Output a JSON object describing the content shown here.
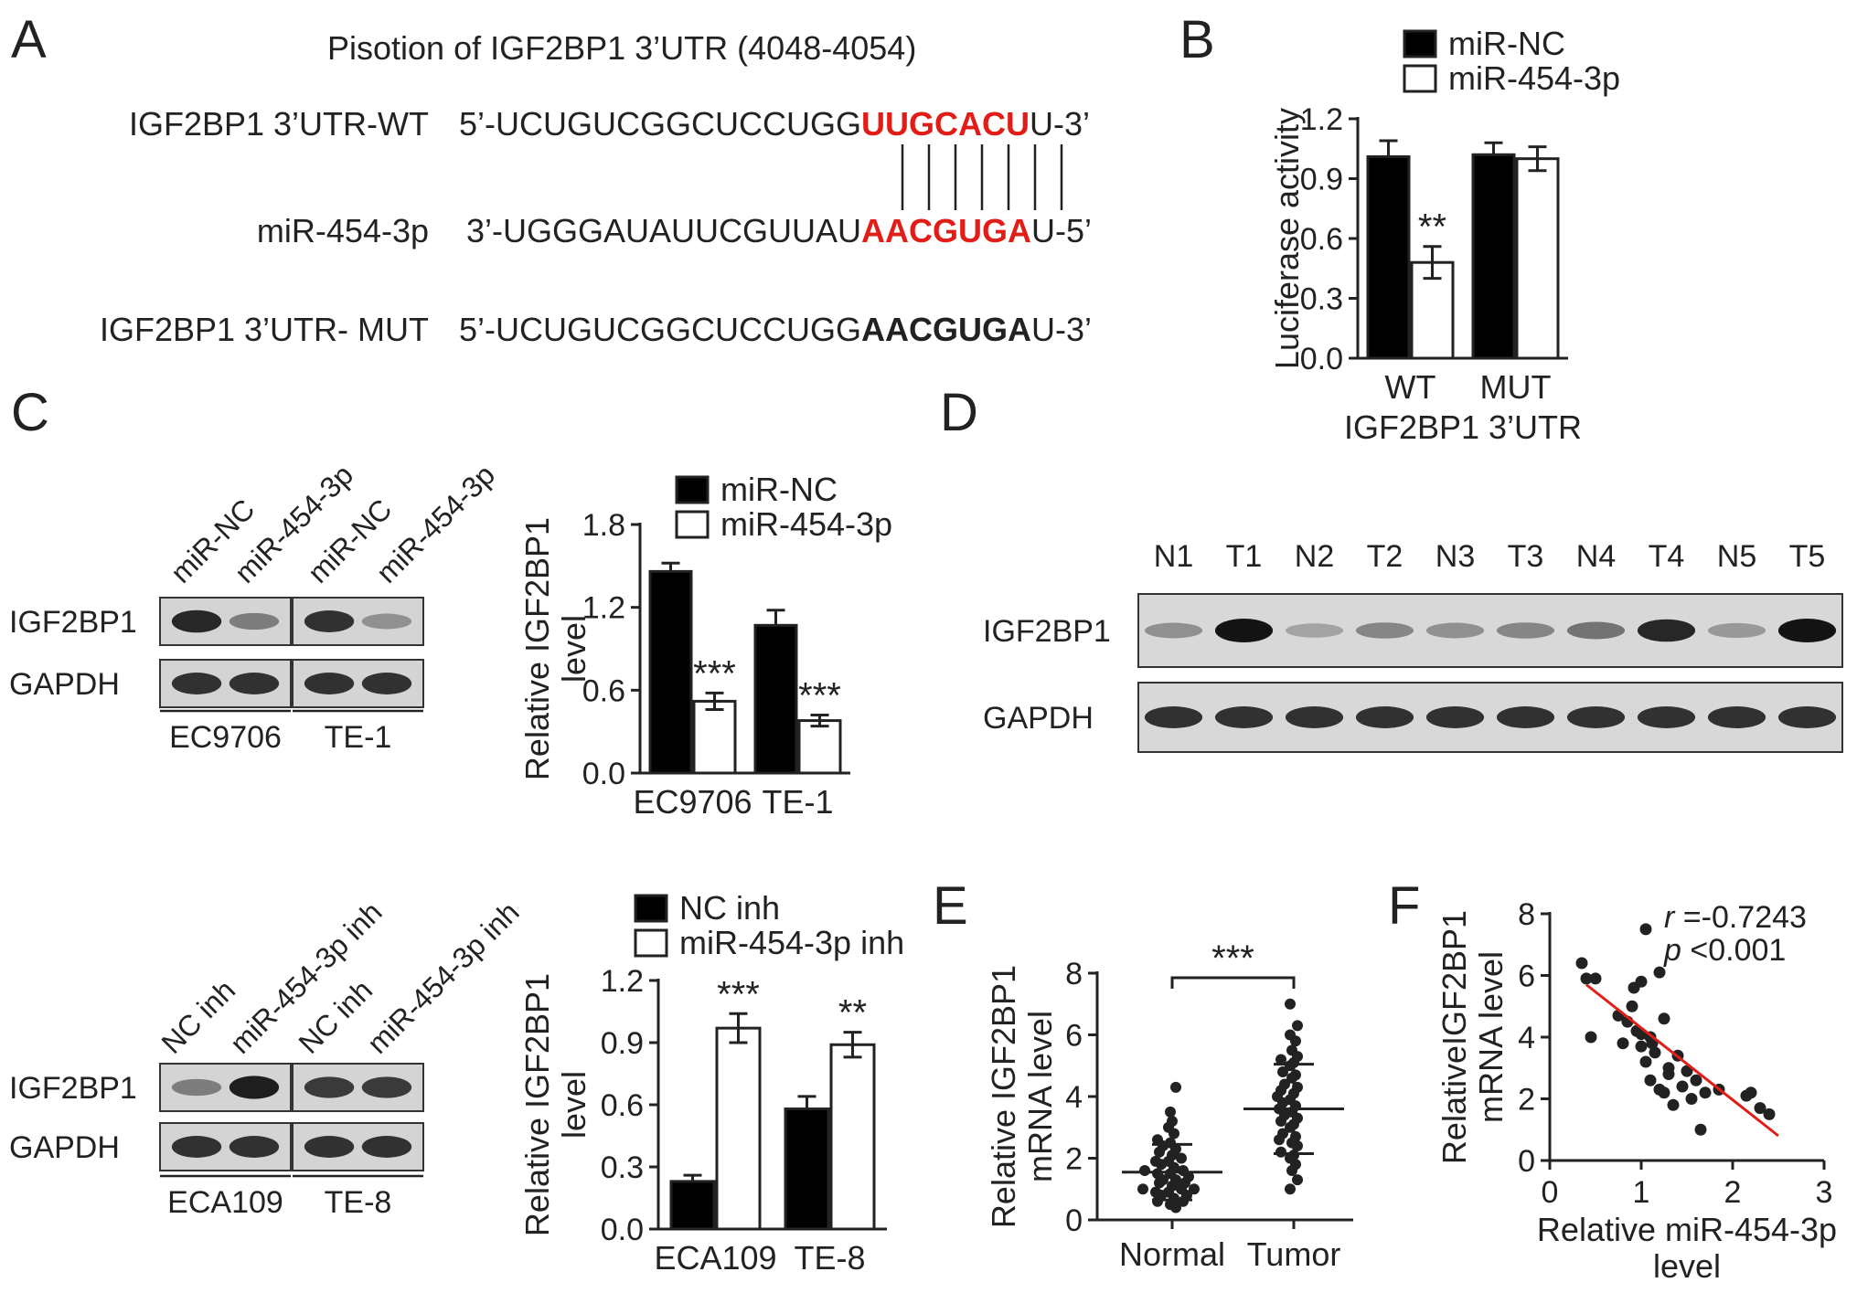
{
  "panels": {
    "A": "A",
    "B": "B",
    "C": "C",
    "D": "D",
    "E": "E",
    "F": "F"
  },
  "panel_a": {
    "title": "Pisotion of IGF2BP1 3’UTR (4048-4054)",
    "rows": [
      {
        "label": "IGF2BP1 3’UTR-WT",
        "prefix": "5’-UCUGUCGGCUCCUGG",
        "site": "UUGCACU",
        "suffix": "U-3’",
        "style": "red"
      },
      {
        "label": "miR-454-3p",
        "prefix": "3’-UGGGAUAUUCGUUAU",
        "site": "AACGUGA",
        "suffix": "U-5’",
        "style": "red"
      },
      {
        "label": "IGF2BP1 3’UTR- MUT",
        "prefix": "5’-UCUGUCGGCUCCUGG",
        "site": "AACGUGA",
        "suffix": "U-3’",
        "style": "bold"
      }
    ]
  },
  "blot_c_top": {
    "lanes": [
      "miR-NC",
      "miR-454-3p",
      "miR-NC",
      "miR-454-3p"
    ],
    "rows": [
      "IGF2BP1",
      "GAPDH"
    ],
    "cells": [
      "EC9706",
      "TE-1"
    ]
  },
  "blot_c_bottom": {
    "lanes": [
      "NC inh",
      "miR-454-3p inh",
      "NC inh",
      "miR-454-3p inh"
    ],
    "rows": [
      "IGF2BP1",
      "GAPDH"
    ],
    "cells": [
      "ECA109",
      "TE-8"
    ]
  },
  "blot_d": {
    "lanes": [
      "N1",
      "T1",
      "N2",
      "T2",
      "N3",
      "T3",
      "N4",
      "T4",
      "N5",
      "T5"
    ],
    "rows": [
      "IGF2BP1",
      "GAPDH"
    ],
    "igf2bp1_intensity": [
      0.35,
      1.0,
      0.25,
      0.4,
      0.35,
      0.4,
      0.5,
      0.9,
      0.3,
      1.0
    ]
  },
  "chart_data": [
    {
      "panel": "B",
      "type": "bar",
      "categories": [
        "WT",
        "MUT"
      ],
      "xlabel": "IGF2BP1 3’UTR",
      "ylabel": "Luciferase activity",
      "ylim": [
        0,
        1.2
      ],
      "yticks": [
        "0.0",
        "0.3",
        "0.6",
        "0.9",
        "1.2"
      ],
      "series": [
        {
          "name": "miR-NC",
          "color": "#000000",
          "values": [
            1.01,
            1.02
          ],
          "errors": [
            0.08,
            0.06
          ]
        },
        {
          "name": "miR-454-3p",
          "color": "#ffffff",
          "values": [
            0.48,
            1.0
          ],
          "errors": [
            0.08,
            0.06
          ]
        }
      ],
      "annotations": [
        {
          "category": 0,
          "series": 1,
          "text": "**"
        }
      ]
    },
    {
      "panel": "C-top",
      "type": "bar",
      "categories": [
        "EC9706",
        "TE-1"
      ],
      "xlabel": "",
      "ylabel": "Relative IGF2BP1 level",
      "ylim": [
        0,
        1.8
      ],
      "yticks": [
        "0.0",
        "0.6",
        "1.2",
        "1.8"
      ],
      "series": [
        {
          "name": "miR-NC",
          "color": "#000000",
          "values": [
            1.46,
            1.07
          ],
          "errors": [
            0.06,
            0.11
          ]
        },
        {
          "name": "miR-454-3p",
          "color": "#ffffff",
          "values": [
            0.52,
            0.38
          ],
          "errors": [
            0.06,
            0.04
          ]
        }
      ],
      "annotations": [
        {
          "category": 0,
          "series": 1,
          "text": "***"
        },
        {
          "category": 1,
          "series": 1,
          "text": "***"
        }
      ]
    },
    {
      "panel": "C-bottom",
      "type": "bar",
      "categories": [
        "ECA109",
        "TE-8"
      ],
      "xlabel": "",
      "ylabel": "Relative IGF2BP1 level",
      "ylim": [
        0,
        1.2
      ],
      "yticks": [
        "0.0",
        "0.3",
        "0.6",
        "0.9",
        "1.2"
      ],
      "series": [
        {
          "name": "NC inh",
          "color": "#000000",
          "values": [
            0.23,
            0.58
          ],
          "errors": [
            0.03,
            0.06
          ]
        },
        {
          "name": "miR-454-3p inh",
          "color": "#ffffff",
          "values": [
            0.97,
            0.89
          ],
          "errors": [
            0.07,
            0.06
          ]
        }
      ],
      "annotations": [
        {
          "category": 0,
          "series": 1,
          "text": "***"
        },
        {
          "category": 1,
          "series": 1,
          "text": "**"
        }
      ]
    },
    {
      "panel": "E",
      "type": "scatter",
      "categories": [
        "Normal",
        "Tumor"
      ],
      "ylabel": "Relative IGF2BP1 mRNA level",
      "ylim": [
        0,
        8
      ],
      "yticks": [
        "0",
        "2",
        "4",
        "6",
        "8"
      ],
      "means": [
        1.55,
        3.6
      ],
      "sd": [
        0.9,
        1.45
      ],
      "significance": "***",
      "points": {
        "Normal": [
          0.4,
          0.5,
          0.6,
          0.6,
          0.7,
          0.8,
          0.8,
          0.9,
          0.9,
          1.0,
          1.0,
          1.0,
          1.1,
          1.2,
          1.2,
          1.3,
          1.3,
          1.4,
          1.5,
          1.5,
          1.6,
          1.6,
          1.7,
          1.8,
          1.9,
          1.9,
          2.0,
          2.1,
          2.2,
          2.3,
          2.4,
          2.5,
          2.6,
          2.8,
          3.0,
          3.2,
          3.5,
          4.3
        ],
        "Tumor": [
          1.0,
          1.3,
          1.6,
          1.8,
          2.0,
          2.1,
          2.2,
          2.4,
          2.5,
          2.6,
          2.7,
          2.8,
          3.0,
          3.1,
          3.2,
          3.3,
          3.4,
          3.5,
          3.6,
          3.7,
          3.8,
          3.9,
          4.0,
          4.1,
          4.2,
          4.3,
          4.4,
          4.6,
          4.7,
          4.8,
          5.0,
          5.1,
          5.2,
          5.3,
          5.5,
          5.8,
          6.0,
          6.3,
          7.0
        ]
      }
    },
    {
      "panel": "F",
      "type": "scatter",
      "xlabel": "Relative miR-454-3p level",
      "ylabel": "RelativeIGF2BP1 mRNA level",
      "xlim": [
        0,
        3
      ],
      "ylim": [
        0,
        8
      ],
      "xticks": [
        "0",
        "1",
        "2",
        "3"
      ],
      "yticks": [
        "0",
        "2",
        "4",
        "6",
        "8"
      ],
      "r_label": "r",
      "r_value": " =-0.7243",
      "p_label": "p",
      "p_value": " <0.001",
      "fit": {
        "x": [
          0.4,
          2.5
        ],
        "y": [
          5.7,
          0.8
        ]
      },
      "points": [
        [
          0.35,
          6.4
        ],
        [
          0.4,
          5.9
        ],
        [
          0.45,
          4.0
        ],
        [
          0.5,
          5.9
        ],
        [
          0.75,
          4.7
        ],
        [
          0.8,
          3.8
        ],
        [
          0.85,
          4.5
        ],
        [
          0.9,
          5.0
        ],
        [
          0.92,
          5.6
        ],
        [
          0.95,
          4.2
        ],
        [
          1.0,
          5.8
        ],
        [
          1.0,
          3.7
        ],
        [
          1.05,
          3.2
        ],
        [
          1.05,
          7.5
        ],
        [
          1.1,
          4.0
        ],
        [
          1.1,
          2.6
        ],
        [
          1.12,
          3.8
        ],
        [
          1.15,
          3.5
        ],
        [
          1.2,
          2.3
        ],
        [
          1.2,
          6.1
        ],
        [
          1.25,
          4.6
        ],
        [
          1.25,
          2.2
        ],
        [
          1.3,
          3.0
        ],
        [
          1.35,
          1.8
        ],
        [
          1.4,
          3.4
        ],
        [
          1.45,
          2.4
        ],
        [
          1.5,
          2.9
        ],
        [
          1.55,
          2.0
        ],
        [
          1.6,
          2.6
        ],
        [
          1.65,
          1.0
        ],
        [
          1.7,
          2.2
        ],
        [
          1.85,
          2.3
        ],
        [
          2.15,
          2.1
        ],
        [
          2.2,
          2.2
        ],
        [
          2.3,
          1.7
        ],
        [
          2.4,
          1.5
        ],
        [
          1.0,
          4.1
        ],
        [
          1.3,
          2.8
        ]
      ]
    }
  ]
}
